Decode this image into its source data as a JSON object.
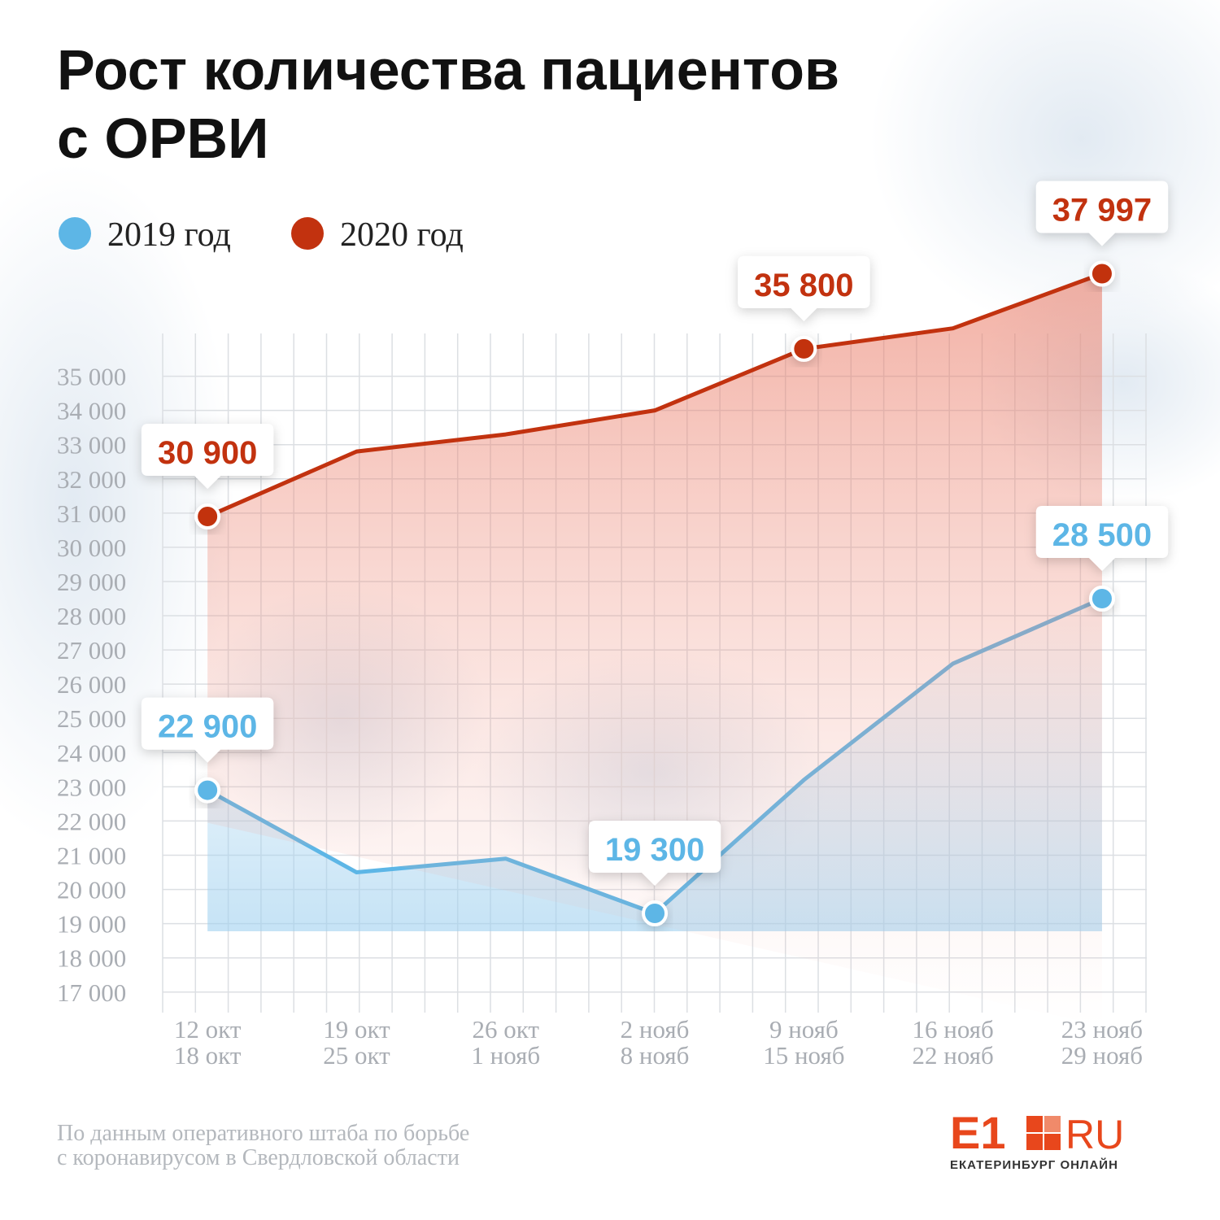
{
  "chart_data": {
    "type": "line",
    "title": [
      "Рост количества пациентов",
      "с ОРВИ"
    ],
    "categories": [
      [
        "12 окт",
        "18 окт"
      ],
      [
        "19 окт",
        "25 окт"
      ],
      [
        "26 окт",
        "1 нояб"
      ],
      [
        "2 нояб",
        "8 нояб"
      ],
      [
        "9 нояб",
        "15 нояб"
      ],
      [
        "16 нояб",
        "22 нояб"
      ],
      [
        "23 нояб",
        "29 нояб"
      ]
    ],
    "series": [
      {
        "name": "2019 год",
        "color": "#5db6e6",
        "values": [
          22900,
          20500,
          20900,
          19300,
          23200,
          26600,
          28500
        ],
        "value_labels": [
          "22 900",
          null,
          null,
          "19 300",
          null,
          null,
          "28 500"
        ]
      },
      {
        "name": "2020 год",
        "color": "#c2320f",
        "values": [
          30900,
          32800,
          33300,
          34000,
          35800,
          36400,
          37997
        ],
        "value_labels": [
          "30 900",
          null,
          null,
          null,
          "35 800",
          null,
          "37 997"
        ]
      }
    ],
    "ylim": [
      16400,
      36250
    ],
    "yticks": [
      {
        "value": 17000,
        "label": "17 000"
      },
      {
        "value": 18000,
        "label": "18 000"
      },
      {
        "value": 19000,
        "label": "19 000"
      },
      {
        "value": 20000,
        "label": "20 000"
      },
      {
        "value": 21000,
        "label": "21 000"
      },
      {
        "value": 22000,
        "label": "22 000"
      },
      {
        "value": 23000,
        "label": "23 000"
      },
      {
        "value": 24000,
        "label": "24 000"
      },
      {
        "value": 25000,
        "label": "25 000"
      },
      {
        "value": 26000,
        "label": "26 000"
      },
      {
        "value": 27000,
        "label": "27 000"
      },
      {
        "value": 28000,
        "label": "28 000"
      },
      {
        "value": 29000,
        "label": "29 000"
      },
      {
        "value": 30000,
        "label": "30 000"
      },
      {
        "value": 31000,
        "label": "31 000"
      },
      {
        "value": 32000,
        "label": "32 000"
      },
      {
        "value": 33000,
        "label": "33 000"
      },
      {
        "value": 34000,
        "label": "34 000"
      },
      {
        "value": 35000,
        "label": "35 000"
      }
    ],
    "grid": true,
    "source": [
      "По данным оперативного штаба по борьбе",
      "с коронавирусом в Свердловской области"
    ],
    "logo": {
      "name": "E1",
      "domain": "RU",
      "tagline": "ЕКАТЕРИНБУРГ ОНЛАЙН"
    }
  }
}
